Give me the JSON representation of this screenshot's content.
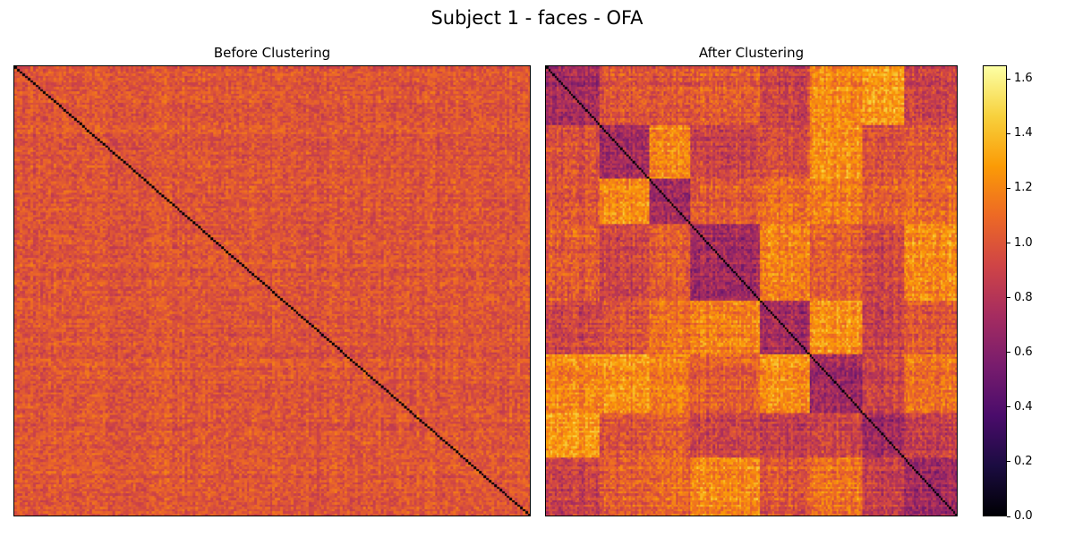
{
  "title": "Subject 1 - faces - OFA",
  "colormap": [
    "#000004",
    "#1b0c41",
    "#4a0c6b",
    "#781c6d",
    "#a52c60",
    "#cf4446",
    "#ed6925",
    "#fb9b06",
    "#f7d13d",
    "#fcffa4"
  ],
  "chart_data": [
    {
      "type": "heatmap",
      "title": "Before Clustering",
      "matrix_size": 200,
      "value_range": [
        0.0,
        1.65
      ],
      "diagonal_value": 0.0,
      "typical_value": 1.0,
      "clusters": false
    },
    {
      "type": "heatmap",
      "title": "After Clustering",
      "matrix_size": 200,
      "value_range": [
        0.0,
        1.65
      ],
      "diagonal_value": 0.0,
      "typical_value": 1.0,
      "clusters": true,
      "cluster_boundaries": [
        0,
        0.13,
        0.25,
        0.35,
        0.52,
        0.64,
        0.77,
        0.87,
        1.0
      ]
    }
  ],
  "colorbar": {
    "min": 0.0,
    "max": 1.65,
    "ticks": [
      "0.0",
      "0.2",
      "0.4",
      "0.6",
      "0.8",
      "1.0",
      "1.2",
      "1.4",
      "1.6"
    ]
  }
}
